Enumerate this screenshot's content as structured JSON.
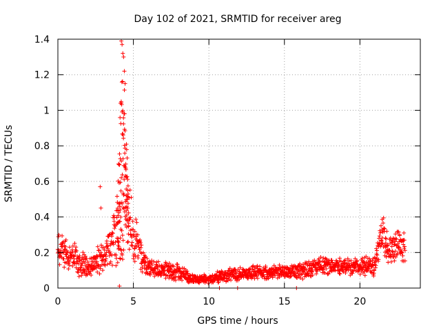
{
  "chart_data": {
    "type": "scatter",
    "title": "Day 102 of 2021, SRMTID for receiver areg",
    "xlabel": "GPS time / hours",
    "ylabel": "SRMTID / TECUs",
    "xlim": [
      0,
      24
    ],
    "ylim": [
      0,
      1.4
    ],
    "x_ticks": [
      0,
      5,
      10,
      15,
      20
    ],
    "x_tick_labels": [
      "0",
      "5",
      "10",
      "15",
      "20"
    ],
    "y_ticks": [
      0,
      0.2,
      0.4,
      0.6,
      0.8,
      1.0,
      1.2,
      1.4
    ],
    "y_tick_labels": [
      "0",
      "0.2",
      "0.4",
      "0.6",
      "0.8",
      "1",
      "1.2",
      "1.4"
    ],
    "grid": true,
    "marker": "+",
    "color": "#ff0000",
    "profile": {
      "description": "Approximate SRMTID envelope vs GPS hour; points scatter around these levels",
      "x": [
        0.0,
        0.5,
        1.0,
        1.5,
        2.0,
        2.5,
        3.0,
        3.5,
        3.8,
        4.0,
        4.2,
        4.4,
        4.6,
        4.8,
        5.0,
        5.3,
        5.6,
        6.0,
        7.0,
        8.0,
        9.0,
        10.0,
        11.0,
        12.0,
        13.0,
        14.0,
        15.0,
        16.0,
        17.0,
        18.0,
        19.0,
        20.0,
        21.0,
        21.5,
        22.0,
        22.5,
        23.0
      ],
      "center": [
        0.22,
        0.2,
        0.18,
        0.14,
        0.12,
        0.14,
        0.17,
        0.22,
        0.28,
        0.4,
        0.6,
        0.7,
        0.45,
        0.38,
        0.3,
        0.24,
        0.16,
        0.11,
        0.1,
        0.09,
        0.05,
        0.05,
        0.07,
        0.08,
        0.09,
        0.09,
        0.09,
        0.1,
        0.12,
        0.13,
        0.12,
        0.12,
        0.13,
        0.32,
        0.2,
        0.24,
        0.22
      ],
      "spread": [
        0.08,
        0.07,
        0.07,
        0.06,
        0.05,
        0.06,
        0.08,
        0.1,
        0.15,
        0.3,
        0.5,
        0.4,
        0.2,
        0.15,
        0.12,
        0.1,
        0.06,
        0.04,
        0.04,
        0.04,
        0.02,
        0.02,
        0.03,
        0.03,
        0.03,
        0.03,
        0.03,
        0.04,
        0.04,
        0.04,
        0.04,
        0.04,
        0.05,
        0.1,
        0.07,
        0.08,
        0.07
      ]
    },
    "highlights": {
      "description": "Notable isolated points",
      "x": [
        2.8,
        2.85,
        4.2,
        4.25,
        4.3,
        4.35,
        4.4,
        4.45,
        4.15,
        10.7,
        11.9,
        15.8
      ],
      "y": [
        0.57,
        0.45,
        1.39,
        1.37,
        1.32,
        1.3,
        1.22,
        1.15,
        1.04,
        0.0,
        0.0,
        0.0
      ]
    }
  }
}
